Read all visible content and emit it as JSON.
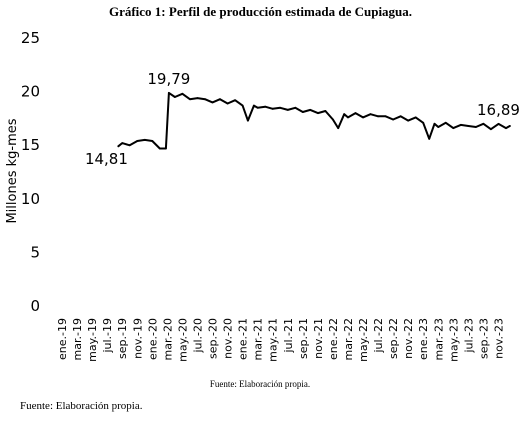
{
  "title": "Gráfico 1: Perfil de producción estimada de Cupiagua.",
  "source_inner": "Fuente: Elaboración propia.",
  "source_outer": "Fuente: Elaboración propia.",
  "colors": {
    "line": "#000000",
    "text": "#000000"
  },
  "chart_data": {
    "type": "line",
    "title": "Gráfico 1: Perfil de producción estimada de Cupiagua.",
    "ylabel": "Millones kg-mes",
    "xlabel": "",
    "ylim": [
      0,
      25
    ],
    "yticks": [
      0,
      5,
      10,
      15,
      20,
      25
    ],
    "grid": false,
    "x_tick_labels": [
      "ene.-19",
      "mar.-19",
      "may.-19",
      "jul.-19",
      "sep.-19",
      "nov.-19",
      "ene.-20",
      "mar.-20",
      "may.-20",
      "jul.-20",
      "sep.-20",
      "nov.-20",
      "ene.-21",
      "mar.-21",
      "may.-21",
      "jul.-21",
      "sep.-21",
      "nov.-21",
      "ene.-22",
      "mar.-22",
      "may.-22",
      "jul.-22",
      "sep.-22",
      "nov.-22",
      "ene.-23",
      "mar.-23",
      "may.-23",
      "jul.-23",
      "sep.-23",
      "nov.-23"
    ],
    "series": [
      {
        "values": [
          {
            "x": 7.5,
            "y": 14.81
          },
          {
            "x": 8,
            "y": 15.1
          },
          {
            "x": 9,
            "y": 14.9
          },
          {
            "x": 10,
            "y": 15.3
          },
          {
            "x": 11,
            "y": 15.4
          },
          {
            "x": 12,
            "y": 15.3
          },
          {
            "x": 13,
            "y": 14.6
          },
          {
            "x": 13.8,
            "y": 14.6
          },
          {
            "x": 14.2,
            "y": 19.79
          },
          {
            "x": 15,
            "y": 19.4
          },
          {
            "x": 16,
            "y": 19.7
          },
          {
            "x": 17,
            "y": 19.2
          },
          {
            "x": 18,
            "y": 19.3
          },
          {
            "x": 19,
            "y": 19.2
          },
          {
            "x": 20,
            "y": 18.9
          },
          {
            "x": 21,
            "y": 19.2
          },
          {
            "x": 22,
            "y": 18.8
          },
          {
            "x": 23,
            "y": 19.1
          },
          {
            "x": 24,
            "y": 18.6
          },
          {
            "x": 24.7,
            "y": 17.2
          },
          {
            "x": 25.5,
            "y": 18.6
          },
          {
            "x": 26,
            "y": 18.4
          },
          {
            "x": 27,
            "y": 18.5
          },
          {
            "x": 28,
            "y": 18.3
          },
          {
            "x": 29,
            "y": 18.4
          },
          {
            "x": 30,
            "y": 18.2
          },
          {
            "x": 31,
            "y": 18.4
          },
          {
            "x": 32,
            "y": 18.0
          },
          {
            "x": 33,
            "y": 18.2
          },
          {
            "x": 34,
            "y": 17.9
          },
          {
            "x": 35,
            "y": 18.1
          },
          {
            "x": 36,
            "y": 17.3
          },
          {
            "x": 36.7,
            "y": 16.5
          },
          {
            "x": 37.5,
            "y": 17.8
          },
          {
            "x": 38,
            "y": 17.5
          },
          {
            "x": 39,
            "y": 17.9
          },
          {
            "x": 40,
            "y": 17.5
          },
          {
            "x": 41,
            "y": 17.8
          },
          {
            "x": 42,
            "y": 17.6
          },
          {
            "x": 43,
            "y": 17.6
          },
          {
            "x": 44,
            "y": 17.3
          },
          {
            "x": 45,
            "y": 17.6
          },
          {
            "x": 46,
            "y": 17.2
          },
          {
            "x": 47,
            "y": 17.5
          },
          {
            "x": 48,
            "y": 17.0
          },
          {
            "x": 48.8,
            "y": 15.5
          },
          {
            "x": 49.5,
            "y": 16.9
          },
          {
            "x": 50,
            "y": 16.6
          },
          {
            "x": 51,
            "y": 17.0
          },
          {
            "x": 52,
            "y": 16.5
          },
          {
            "x": 53,
            "y": 16.8
          },
          {
            "x": 54,
            "y": 16.7
          },
          {
            "x": 55,
            "y": 16.6
          },
          {
            "x": 56,
            "y": 16.9
          },
          {
            "x": 57,
            "y": 16.4
          },
          {
            "x": 58,
            "y": 16.89
          },
          {
            "x": 59,
            "y": 16.5
          },
          {
            "x": 59.5,
            "y": 16.7
          }
        ]
      }
    ],
    "annotations": [
      {
        "text": "14,81",
        "x": 7.5,
        "y": 14.81
      },
      {
        "text": "19,79",
        "x": 14.2,
        "y": 19.79
      },
      {
        "text": "16,89",
        "x": 58,
        "y": 16.89
      }
    ]
  }
}
